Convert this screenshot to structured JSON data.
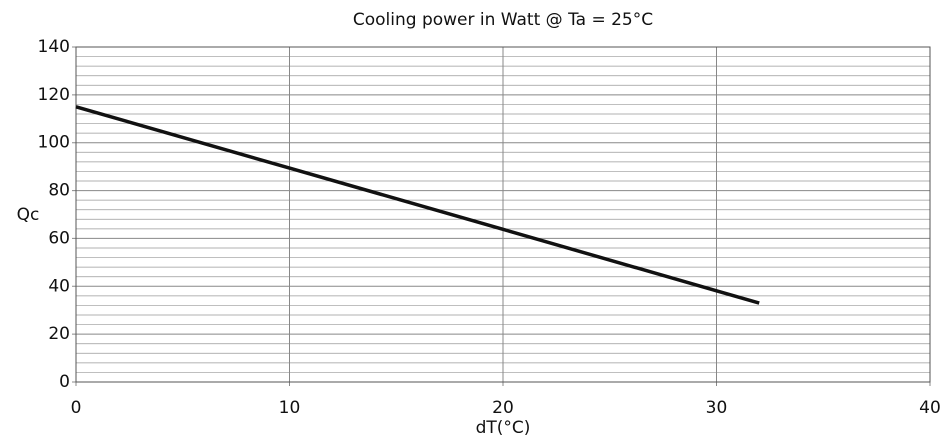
{
  "chart_data": {
    "type": "line",
    "title": "Cooling power in Watt @ Ta = 25°C",
    "x_label": "dT(°C)",
    "y_label": "Qc",
    "x": [
      0,
      10,
      20,
      30,
      32
    ],
    "series": [
      {
        "name": "Qc",
        "color": "#111111",
        "values": [
          115,
          89.4,
          63.8,
          38.1,
          33
        ]
      }
    ],
    "xlim": [
      0,
      40
    ],
    "xticks": [
      0,
      10,
      20,
      30,
      40
    ],
    "ylim": [
      0,
      140
    ],
    "yticks": [
      0,
      20,
      40,
      60,
      80,
      100,
      120,
      140
    ],
    "y_minor_ticks": [
      4,
      8,
      12,
      16,
      24,
      28,
      32,
      36,
      44,
      48,
      52,
      56,
      64,
      68,
      72,
      76,
      84,
      88,
      92,
      96,
      104,
      108,
      112,
      116,
      124,
      128,
      132,
      136
    ],
    "grid": true
  }
}
